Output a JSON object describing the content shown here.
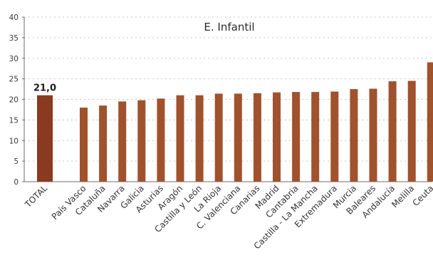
{
  "chart_data": {
    "type": "bar",
    "title": "E. Infantil",
    "xlabel": "",
    "ylabel": "",
    "ylim": [
      0,
      40
    ],
    "yticks": [
      0,
      5,
      10,
      15,
      20,
      25,
      30,
      35,
      40
    ],
    "grid": true,
    "legend": "none",
    "categories": [
      "TOTAL",
      "País Vasco",
      "Cataluña",
      "Navarra",
      "Galicia",
      "Asturias",
      "Aragón",
      "Castilla y León",
      "La Rioja",
      "C. Valenciana",
      "Canarias",
      "Madrid",
      "Cantabria",
      "Castilla - La Mancha",
      "Extremadura",
      "Murcia",
      "Baleares",
      "Andalucía",
      "Melilla",
      "Ceuta"
    ],
    "values": [
      21.0,
      18.0,
      18.5,
      19.5,
      19.8,
      20.2,
      21.0,
      21.0,
      21.4,
      21.4,
      21.5,
      21.7,
      21.8,
      21.8,
      21.9,
      22.5,
      22.6,
      24.4,
      24.5,
      29.0
    ],
    "data_labels": [
      {
        "category": "TOTAL",
        "text": "21,0"
      }
    ],
    "colors": {
      "total_bar": "#8a3a1e",
      "bar": "#a0522d",
      "axis": "#6b6b6b",
      "grid": "#c9c9c9"
    }
  }
}
